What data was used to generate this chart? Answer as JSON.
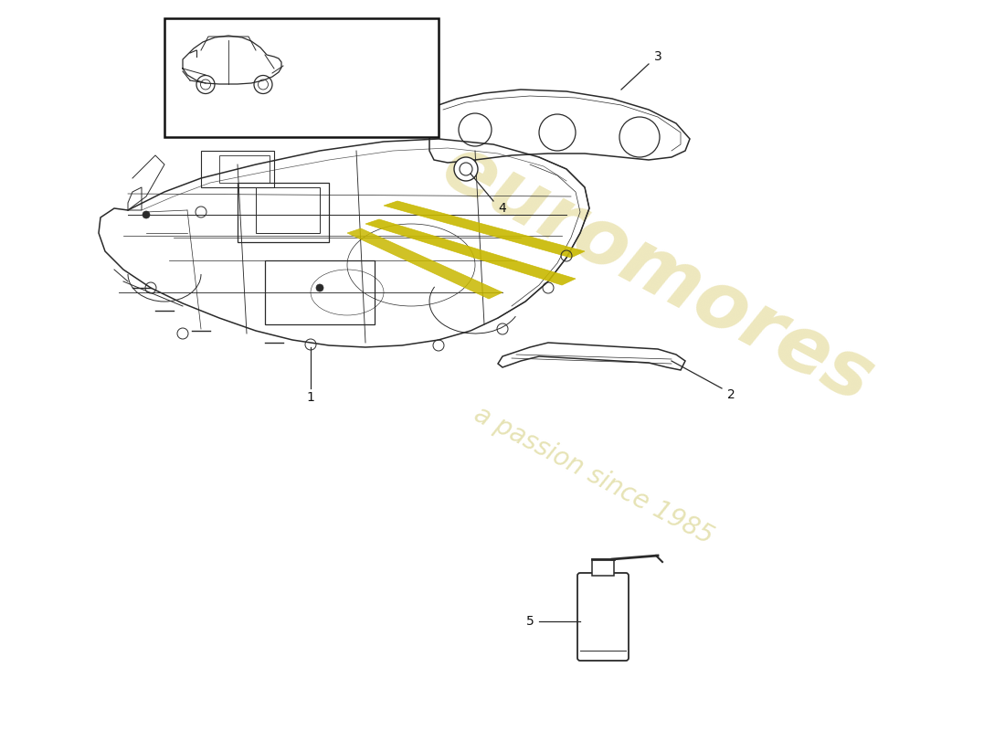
{
  "bg_color": "#ffffff",
  "line_color": "#2a2a2a",
  "watermark_color1": "#e8e0a8",
  "watermark_color2": "#ddd898",
  "accent_yellow": "#c8b800",
  "part_label_color": "#111111",
  "lw_main": 1.1,
  "lw_detail": 0.7,
  "lw_thin": 0.5
}
